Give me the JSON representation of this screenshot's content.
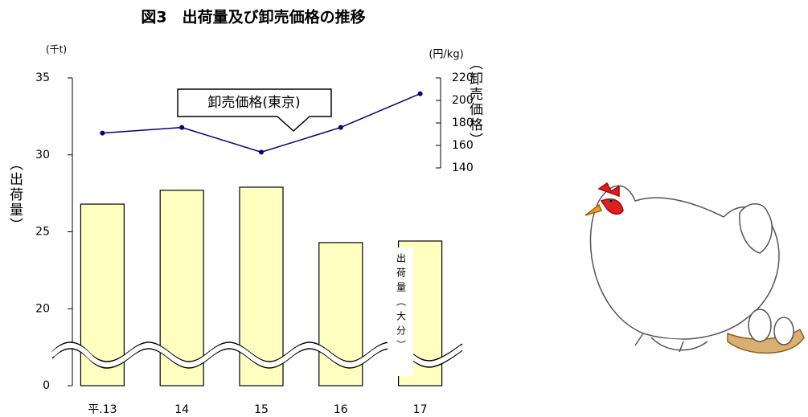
{
  "chart_data": {
    "type": "bar_line",
    "title": "図3　出荷量及び卸売価格の推移",
    "y_unit": "(千t)",
    "y_label": "（出荷量）",
    "y2_unit": "(円/kg)",
    "y2_label": "（卸売価格）",
    "categories": [
      "平.13",
      "14",
      "15",
      "16",
      "17"
    ],
    "series": [
      {
        "name": "出荷量（大分）",
        "color": "#ffffc0",
        "values": [
          26.8,
          27.7,
          27.9,
          24.3,
          24.4
        ]
      },
      {
        "name": "卸売価格(東京)",
        "color": "#000080",
        "axis": "y2",
        "values": [
          171,
          176,
          154,
          176,
          206
        ]
      }
    ],
    "ylim": [
      0,
      35
    ],
    "yticks": [
      0,
      20,
      25,
      30,
      35
    ],
    "axis_break": true,
    "y2lim": [
      140,
      220
    ],
    "y2ticks": [
      140,
      160,
      180,
      200,
      220
    ]
  }
}
